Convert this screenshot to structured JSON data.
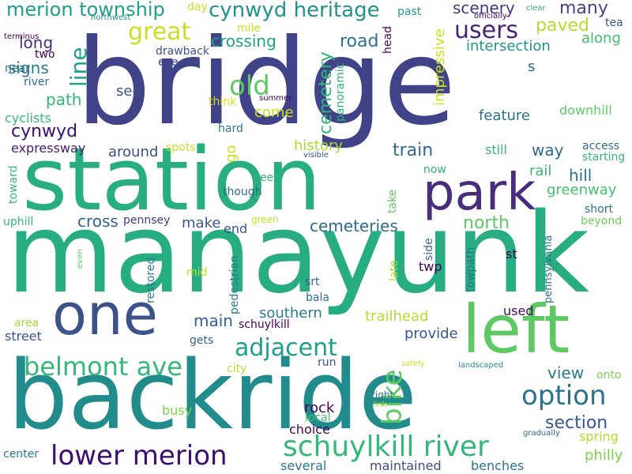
{
  "colors": {
    "background": "#ffffff",
    "palette": [
      "#440154",
      "#3b528b",
      "#21918c",
      "#27ad81",
      "#5ec962",
      "#c8e020",
      "#fde725"
    ]
  },
  "words": [
    {
      "text": "bridge",
      "color": "#404387",
      "vertical": false
    },
    {
      "text": "station",
      "color": "#29af7f",
      "vertical": false
    },
    {
      "text": "manayunk",
      "color": "#27ad81",
      "vertical": false
    },
    {
      "text": "backride",
      "color": "#228c8d",
      "vertical": false
    },
    {
      "text": "one",
      "color": "#3b528b",
      "vertical": false
    },
    {
      "text": "left",
      "color": "#5ec962",
      "vertical": false
    },
    {
      "text": "park",
      "color": "#472d7b",
      "vertical": false
    },
    {
      "text": "schuylkill river",
      "color": "#35b779",
      "vertical": false
    },
    {
      "text": "lower merion",
      "color": "#3b0f70",
      "vertical": false
    },
    {
      "text": "belmont ave",
      "color": "#35b779",
      "vertical": false
    },
    {
      "text": "option",
      "color": "#2c728e",
      "vertical": false
    },
    {
      "text": "adjacent",
      "color": "#1f9e89",
      "vertical": false
    },
    {
      "text": "bike",
      "color": "#5ec962",
      "vertical": true
    },
    {
      "text": "great",
      "color": "#c8e020",
      "vertical": false
    },
    {
      "text": "cynwyd heritage",
      "color": "#21918c",
      "vertical": false
    },
    {
      "text": "merion township",
      "color": "#1f9e89",
      "vertical": false
    },
    {
      "text": "users",
      "color": "#482475",
      "vertical": false
    },
    {
      "text": "old",
      "color": "#5ec962",
      "vertical": false
    },
    {
      "text": "line",
      "color": "#1f9e89",
      "vertical": true
    },
    {
      "text": "scenery",
      "color": "#443983",
      "vertical": false
    },
    {
      "text": "many",
      "color": "#414487",
      "vertical": false
    },
    {
      "text": "paved",
      "color": "#b5de2b",
      "vertical": false
    },
    {
      "text": "section",
      "color": "#39568c",
      "vertical": false
    },
    {
      "text": "view",
      "color": "#2a788e",
      "vertical": false
    },
    {
      "text": "cemetery",
      "color": "#2fb47c",
      "vertical": true
    },
    {
      "text": "cemeteries",
      "color": "#31688e",
      "vertical": false
    },
    {
      "text": "road",
      "color": "#2c728e",
      "vertical": false
    },
    {
      "text": "crossing",
      "color": "#1fa088",
      "vertical": false
    },
    {
      "text": "train",
      "color": "#31688e",
      "vertical": false
    },
    {
      "text": "history",
      "color": "#a8db34",
      "vertical": false
    },
    {
      "text": "trailhead",
      "color": "#b5de2b",
      "vertical": false
    },
    {
      "text": "main",
      "color": "#355f8d",
      "vertical": false
    },
    {
      "text": "southern",
      "color": "#287c8e",
      "vertical": false
    },
    {
      "text": "north",
      "color": "#5ec962",
      "vertical": false
    },
    {
      "text": "cynwyd",
      "color": "#3b0f70",
      "vertical": false
    },
    {
      "text": "path",
      "color": "#35b779",
      "vertical": false
    },
    {
      "text": "signs",
      "color": "#2a788e",
      "vertical": false
    },
    {
      "text": "long",
      "color": "#472d7b",
      "vertical": false
    },
    {
      "text": "cross",
      "color": "#33638d",
      "vertical": false
    },
    {
      "text": "rock",
      "color": "#440154",
      "vertical": false
    },
    {
      "text": "provide",
      "color": "#39568c",
      "vertical": false
    },
    {
      "text": "hill",
      "color": "#2c728e",
      "vertical": false
    },
    {
      "text": "along",
      "color": "#44bf70",
      "vertical": false
    },
    {
      "text": "intersection",
      "color": "#21918c",
      "vertical": false
    },
    {
      "text": "impressive",
      "color": "#c8e020",
      "vertical": true
    },
    {
      "text": "feature",
      "color": "#2c728e",
      "vertical": false
    },
    {
      "text": "come",
      "color": "#c8e020",
      "vertical": false
    },
    {
      "text": "see",
      "color": "#39568c",
      "vertical": false
    },
    {
      "text": "way",
      "color": "#2f6c8e",
      "vertical": false
    },
    {
      "text": "rail",
      "color": "#3aba76",
      "vertical": false
    },
    {
      "text": "greenway",
      "color": "#44bf70",
      "vertical": false
    },
    {
      "text": "make",
      "color": "#39568c",
      "vertical": false
    },
    {
      "text": "end",
      "color": "#3b528b",
      "vertical": false
    },
    {
      "text": "around",
      "color": "#3e4c8a",
      "vertical": false
    },
    {
      "text": "expressway",
      "color": "#481a6c",
      "vertical": false
    },
    {
      "text": "cyclists",
      "color": "#35b779",
      "vertical": false
    },
    {
      "text": "spring",
      "color": "#b5de2b",
      "vertical": false
    },
    {
      "text": "philly",
      "color": "#7ad151",
      "vertical": false
    },
    {
      "text": "busy",
      "color": "#7ad151",
      "vertical": false
    },
    {
      "text": "choice",
      "color": "#450457",
      "vertical": false
    },
    {
      "text": "maintained",
      "color": "#3e4c8a",
      "vertical": false
    },
    {
      "text": "benches",
      "color": "#2c728e",
      "vertical": false
    },
    {
      "text": "several",
      "color": "#2a788e",
      "vertical": false
    },
    {
      "text": "center",
      "color": "#287c8e",
      "vertical": false
    },
    {
      "text": "street",
      "color": "#3b528b",
      "vertical": false
    },
    {
      "text": "area",
      "color": "#a5db36",
      "vertical": false
    },
    {
      "text": "gets",
      "color": "#33638d",
      "vertical": false
    },
    {
      "text": "run",
      "color": "#3b528b",
      "vertical": false
    },
    {
      "text": "city",
      "color": "#bddf26",
      "vertical": false
    },
    {
      "text": "local",
      "color": "#44bf70",
      "vertical": false
    },
    {
      "text": "bala",
      "color": "#2e6f8e",
      "vertical": false
    },
    {
      "text": "srt",
      "color": "#31688e",
      "vertical": false
    },
    {
      "text": "twp",
      "color": "#440154",
      "vertical": false
    },
    {
      "text": "used",
      "color": "#46085c",
      "vertical": false
    },
    {
      "text": "onto",
      "color": "#7ad151",
      "vertical": false
    },
    {
      "text": "beyond",
      "color": "#6ece58",
      "vertical": false
    },
    {
      "text": "short",
      "color": "#2c728e",
      "vertical": false
    },
    {
      "text": "st",
      "color": "#440154",
      "vertical": false
    },
    {
      "text": "access",
      "color": "#2e6f8e",
      "vertical": false
    },
    {
      "text": "starting",
      "color": "#35b779",
      "vertical": false
    },
    {
      "text": "downhill",
      "color": "#5ec962",
      "vertical": false
    },
    {
      "text": "still",
      "color": "#35b779",
      "vertical": false
    },
    {
      "text": "now",
      "color": "#2fb47c",
      "vertical": false
    },
    {
      "text": "though",
      "color": "#31688e",
      "vertical": false
    },
    {
      "text": "trees",
      "color": "#29af7f",
      "vertical": false
    },
    {
      "text": "green",
      "color": "#c2df23",
      "vertical": false
    },
    {
      "text": "pennsey",
      "color": "#453882",
      "vertical": false
    },
    {
      "text": "uphill",
      "color": "#35b779",
      "vertical": false
    },
    {
      "text": "spots",
      "color": "#c8e020",
      "vertical": false
    },
    {
      "text": "hard",
      "color": "#2c728e",
      "vertical": false
    },
    {
      "text": "think",
      "color": "#d2e21b",
      "vertical": false
    },
    {
      "text": "eye",
      "color": "#404387",
      "vertical": false
    },
    {
      "text": "drawback",
      "color": "#3b528b",
      "vertical": false
    },
    {
      "text": "mile",
      "color": "#c8e020",
      "vertical": false
    },
    {
      "text": "day",
      "color": "#c8e020",
      "vertical": false
    },
    {
      "text": "past",
      "color": "#1f9e89",
      "vertical": false
    },
    {
      "text": "two",
      "color": "#440154",
      "vertical": false
    },
    {
      "text": "near",
      "color": "#2c728e",
      "vertical": false
    },
    {
      "text": "river",
      "color": "#2d708e",
      "vertical": false
    },
    {
      "text": "tea",
      "color": "#3b528b",
      "vertical": false
    },
    {
      "text": "s",
      "color": "#2d708e",
      "vertical": false
    },
    {
      "text": "clear",
      "color": "#28ae80",
      "vertical": false
    },
    {
      "text": "officially",
      "color": "#440154",
      "vertical": false
    },
    {
      "text": "northwest",
      "color": "#21918c",
      "vertical": false
    },
    {
      "text": "terminus",
      "color": "#440154",
      "vertical": false
    },
    {
      "text": "summer",
      "color": "#440154",
      "vertical": false
    },
    {
      "text": "visible",
      "color": "#3b528b",
      "vertical": false
    },
    {
      "text": "safely",
      "color": "#c8e020",
      "vertical": false
    },
    {
      "text": "right",
      "color": "#2c728e",
      "vertical": false
    },
    {
      "text": "link",
      "color": "#addc30",
      "vertical": false
    },
    {
      "text": "gradually",
      "color": "#2d708e",
      "vertical": false
    },
    {
      "text": "landscaped",
      "color": "#21918c",
      "vertical": false
    },
    {
      "text": "even",
      "color": "#5ec962",
      "vertical": true
    },
    {
      "text": "head",
      "color": "#440154",
      "vertical": true
    },
    {
      "text": "panoramic",
      "color": "#2fb47c",
      "vertical": true
    },
    {
      "text": "go",
      "color": "#c8e020",
      "vertical": true
    },
    {
      "text": "toward",
      "color": "#35b779",
      "vertical": true
    },
    {
      "text": "take",
      "color": "#5ec962",
      "vertical": true
    },
    {
      "text": "late",
      "color": "#b5de2b",
      "vertical": true
    },
    {
      "text": "side",
      "color": "#31688e",
      "vertical": true
    },
    {
      "text": "restored",
      "color": "#287c8e",
      "vertical": true
    },
    {
      "text": "mid",
      "color": "#c8e020",
      "vertical": false
    },
    {
      "text": "pedestrian",
      "color": "#2a788e",
      "vertical": true
    },
    {
      "text": "schuylkill",
      "color": "#440154",
      "vertical": false
    },
    {
      "text": "towpath",
      "color": "#2c728e",
      "vertical": true
    },
    {
      "text": "pennsylvania",
      "color": "#2c728e",
      "vertical": true
    }
  ]
}
